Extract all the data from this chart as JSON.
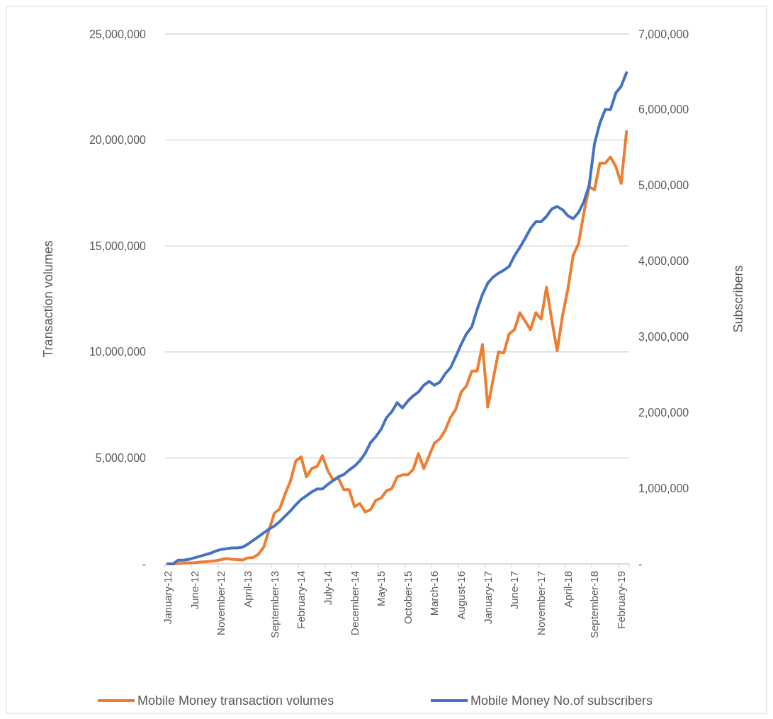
{
  "chart_data": {
    "type": "line",
    "categories": [
      "January-12",
      null,
      null,
      null,
      null,
      "June-12",
      null,
      null,
      null,
      null,
      "November-12",
      null,
      null,
      null,
      null,
      "April-13",
      null,
      null,
      null,
      null,
      "September-13",
      null,
      null,
      null,
      null,
      "February-14",
      null,
      null,
      null,
      null,
      "July-14",
      null,
      null,
      null,
      null,
      "December-14",
      null,
      null,
      null,
      null,
      "May-15",
      null,
      null,
      null,
      null,
      "October-15",
      null,
      null,
      null,
      null,
      "March-16",
      null,
      null,
      null,
      null,
      "August-16",
      null,
      null,
      null,
      null,
      "January-17",
      null,
      null,
      null,
      null,
      "June-17",
      null,
      null,
      null,
      null,
      "November-17",
      null,
      null,
      null,
      null,
      "April-18",
      null,
      null,
      null,
      null,
      "September-18",
      null,
      null,
      null,
      null,
      "February-19",
      null
    ],
    "ylabel": "Transaction volumes",
    "y2label": "Subscribers",
    "ylim": [
      0,
      25000000
    ],
    "yticks": [
      {
        "value": 0,
        "label": "-"
      },
      {
        "value": 5000000,
        "label": "5,000,000"
      },
      {
        "value": 10000000,
        "label": "10,000,000"
      },
      {
        "value": 15000000,
        "label": "15,000,000"
      },
      {
        "value": 20000000,
        "label": "20,000,000"
      },
      {
        "value": 25000000,
        "label": "25,000,000"
      }
    ],
    "y2lim": [
      0,
      7000000
    ],
    "y2ticks": [
      {
        "value": 0,
        "label": "-"
      },
      {
        "value": 1000000,
        "label": "1,000,000"
      },
      {
        "value": 2000000,
        "label": "2,000,000"
      },
      {
        "value": 3000000,
        "label": "3,000,000"
      },
      {
        "value": 4000000,
        "label": "4,000,000"
      },
      {
        "value": 5000000,
        "label": "5,000,000"
      },
      {
        "value": 6000000,
        "label": "6,000,000"
      },
      {
        "value": 7000000,
        "label": "7,000,000"
      }
    ],
    "grid": "y",
    "legend": "bottom",
    "marker": "none",
    "series": [
      {
        "name": "Mobile Money transaction volumes",
        "color": "#ed7d31",
        "values": [
          0,
          0,
          20000,
          30000,
          50000,
          60000,
          80000,
          100000,
          120000,
          150000,
          200000,
          250000,
          220000,
          200000,
          180000,
          280000,
          300000,
          450000,
          800000,
          1600000,
          2400000,
          2600000,
          3300000,
          3900000,
          4850000,
          5050000,
          4100000,
          4500000,
          4600000,
          5100000,
          4400000,
          3950000,
          4050000,
          3500000,
          3500000,
          2700000,
          2850000,
          2450000,
          2550000,
          3000000,
          3100000,
          3450000,
          3550000,
          4100000,
          4200000,
          4200000,
          4450000,
          5200000,
          4500000,
          5100000,
          5700000,
          5900000,
          6300000,
          6900000,
          7300000,
          8100000,
          8400000,
          9100000,
          9100000,
          10350000,
          7400000,
          8700000,
          10000000,
          9950000,
          10850000,
          11050000,
          11850000,
          11450000,
          11050000,
          11850000,
          11550000,
          13050000,
          11500000,
          10050000,
          11700000,
          12950000,
          14550000,
          15100000,
          16550000,
          17800000,
          17650000,
          18900000,
          18900000,
          19200000,
          18750000,
          17950000,
          20400000
        ]
      },
      {
        "name": "Mobile Money No.of subscribers",
        "color": "#4472c4",
        "axis": "y2",
        "values": [
          0,
          0,
          50000,
          50000,
          60000,
          80000,
          100000,
          120000,
          140000,
          170000,
          190000,
          200000,
          210000,
          210000,
          220000,
          260000,
          310000,
          360000,
          410000,
          460000,
          500000,
          560000,
          630000,
          700000,
          780000,
          850000,
          900000,
          950000,
          990000,
          990000,
          1050000,
          1100000,
          1150000,
          1180000,
          1240000,
          1290000,
          1360000,
          1460000,
          1600000,
          1680000,
          1780000,
          1930000,
          2010000,
          2130000,
          2060000,
          2150000,
          2220000,
          2270000,
          2360000,
          2410000,
          2360000,
          2400000,
          2510000,
          2590000,
          2740000,
          2900000,
          3040000,
          3130000,
          3360000,
          3560000,
          3710000,
          3790000,
          3840000,
          3880000,
          3930000,
          4070000,
          4180000,
          4300000,
          4430000,
          4520000,
          4520000,
          4590000,
          4690000,
          4720000,
          4680000,
          4600000,
          4560000,
          4640000,
          4780000,
          5000000,
          5550000,
          5820000,
          6000000,
          6000000,
          6220000,
          6310000,
          6490000
        ]
      }
    ]
  }
}
